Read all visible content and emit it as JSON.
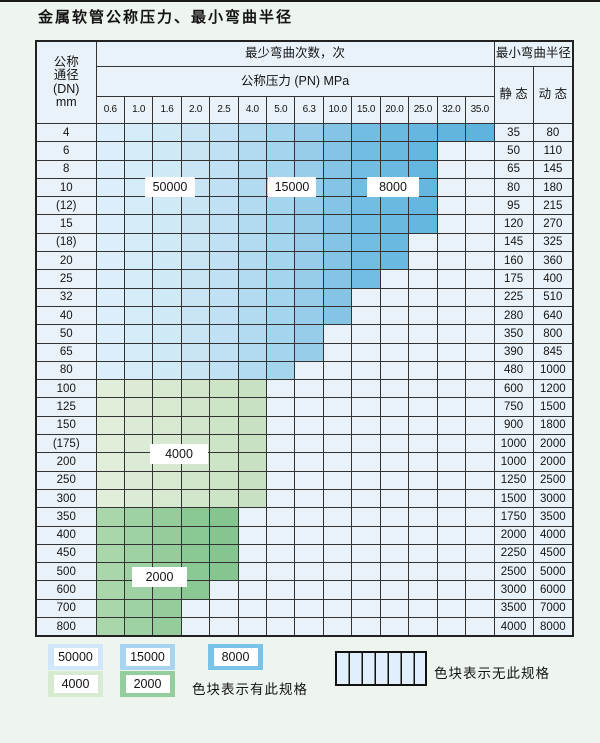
{
  "page": {
    "title": "金属软管公称压力、最小弯曲半径"
  },
  "table": {
    "dn_header_lines": [
      "公称",
      "通径",
      "(DN)",
      "mm"
    ],
    "cycles_header": "最少弯曲次数，次",
    "pressure_header": "公称压力 (PN) MPa",
    "radius_header": "最小弯曲半径",
    "static_header": "静 态",
    "dynamic_header": "动 态",
    "pressure_ticks": [
      "0.6",
      "1.0",
      "1.6",
      "2.0",
      "2.5",
      "4.0",
      "5.0",
      "6.3",
      "10.0",
      "15.0",
      "20.0",
      "25.0",
      "32.0",
      "35.0"
    ],
    "rows": [
      {
        "dn": "4",
        "zone": "blue",
        "spec_through": "35.0",
        "static": "35",
        "dynamic": "80"
      },
      {
        "dn": "6",
        "zone": "blue",
        "spec_through": "25.0",
        "static": "50",
        "dynamic": "110"
      },
      {
        "dn": "8",
        "zone": "blue",
        "spec_through": "25.0",
        "static": "65",
        "dynamic": "145"
      },
      {
        "dn": "10",
        "zone": "blue",
        "spec_through": "25.0",
        "static": "80",
        "dynamic": "180"
      },
      {
        "dn": "(12)",
        "zone": "blue",
        "spec_through": "25.0",
        "static": "95",
        "dynamic": "215"
      },
      {
        "dn": "15",
        "zone": "blue",
        "spec_through": "25.0",
        "static": "120",
        "dynamic": "270"
      },
      {
        "dn": "(18)",
        "zone": "blue",
        "spec_through": "20.0",
        "static": "145",
        "dynamic": "325"
      },
      {
        "dn": "20",
        "zone": "blue",
        "spec_through": "20.0",
        "static": "160",
        "dynamic": "360"
      },
      {
        "dn": "25",
        "zone": "blue",
        "spec_through": "15.0",
        "static": "175",
        "dynamic": "400"
      },
      {
        "dn": "32",
        "zone": "blue",
        "spec_through": "10.0",
        "static": "225",
        "dynamic": "510"
      },
      {
        "dn": "40",
        "zone": "blue",
        "spec_through": "10.0",
        "static": "280",
        "dynamic": "640"
      },
      {
        "dn": "50",
        "zone": "blue",
        "spec_through": "6.3",
        "static": "350",
        "dynamic": "800"
      },
      {
        "dn": "65",
        "zone": "blue",
        "spec_through": "6.3",
        "static": "390",
        "dynamic": "845"
      },
      {
        "dn": "80",
        "zone": "blue",
        "spec_through": "5.0",
        "static": "480",
        "dynamic": "1000"
      },
      {
        "dn": "100",
        "zone": "green-4000",
        "spec_through": "4.0",
        "static": "600",
        "dynamic": "1200"
      },
      {
        "dn": "125",
        "zone": "green-4000",
        "spec_through": "4.0",
        "static": "750",
        "dynamic": "1500"
      },
      {
        "dn": "150",
        "zone": "green-4000",
        "spec_through": "4.0",
        "static": "900",
        "dynamic": "1800"
      },
      {
        "dn": "(175)",
        "zone": "green-4000",
        "spec_through": "4.0",
        "static": "1000",
        "dynamic": "2000"
      },
      {
        "dn": "200",
        "zone": "green-4000",
        "spec_through": "4.0",
        "static": "1000",
        "dynamic": "2000"
      },
      {
        "dn": "250",
        "zone": "green-4000",
        "spec_through": "4.0",
        "static": "1250",
        "dynamic": "2500"
      },
      {
        "dn": "300",
        "zone": "green-4000",
        "spec_through": "4.0",
        "static": "1500",
        "dynamic": "3000"
      },
      {
        "dn": "350",
        "zone": "green-2000",
        "spec_through": "2.5",
        "static": "1750",
        "dynamic": "3500"
      },
      {
        "dn": "400",
        "zone": "green-2000",
        "spec_through": "2.5",
        "static": "2000",
        "dynamic": "4000"
      },
      {
        "dn": "450",
        "zone": "green-2000",
        "spec_through": "2.5",
        "static": "2250",
        "dynamic": "4500"
      },
      {
        "dn": "500",
        "zone": "green-2000",
        "spec_through": "2.5",
        "static": "2500",
        "dynamic": "5000"
      },
      {
        "dn": "600",
        "zone": "green-2000",
        "spec_through": "2.0",
        "static": "3000",
        "dynamic": "6000"
      },
      {
        "dn": "700",
        "zone": "green-2000",
        "spec_through": "1.6",
        "static": "3500",
        "dynamic": "7000"
      },
      {
        "dn": "800",
        "zone": "green-2000",
        "spec_through": "1.6",
        "static": "4000",
        "dynamic": "8000"
      }
    ]
  },
  "cycle_labels": [
    {
      "text": "50000"
    },
    {
      "text": "15000"
    },
    {
      "text": "8000"
    },
    {
      "text": "4000"
    },
    {
      "text": "2000"
    }
  ],
  "legend": {
    "swatches": [
      {
        "text": "50000",
        "color": "#cfe7f8"
      },
      {
        "text": "15000",
        "color": "#a8d4f0"
      },
      {
        "text": "8000",
        "color": "#79c3e9"
      },
      {
        "text": "4000",
        "color": "#d7ead2"
      },
      {
        "text": "2000",
        "color": "#94cd9e"
      }
    ],
    "has_spec_text": "色块表示有此规格",
    "no_spec_text": "色块表示无此规格"
  },
  "colors": {
    "page_bg": "#eef5ef",
    "cell_bg": "#e9f2f9",
    "grid": "#333333",
    "hatch_line": "#5f6e7a",
    "hatch_bg": "#f3f9fd",
    "blue_shades": [
      "#dceefa",
      "#d7ecf9",
      "#d0e9f7",
      "#c9e5f5",
      "#bfe1f3",
      "#b2daf0",
      "#a5d4ed",
      "#97cde9",
      "#84c5e6",
      "#72bde2",
      "#6ab9e1",
      "#65b7e0",
      "#61b5df",
      "#5fb4df"
    ],
    "green_4000_shades": [
      "#e0eeda",
      "#dcebd5",
      "#d7e9d0",
      "#d2e6cb",
      "#cde4c7",
      "#c8e1c2"
    ],
    "green_2000_shades": [
      "#aad6ac",
      "#9ed1a3",
      "#94cd9b",
      "#8bc994",
      "#85c690"
    ]
  }
}
